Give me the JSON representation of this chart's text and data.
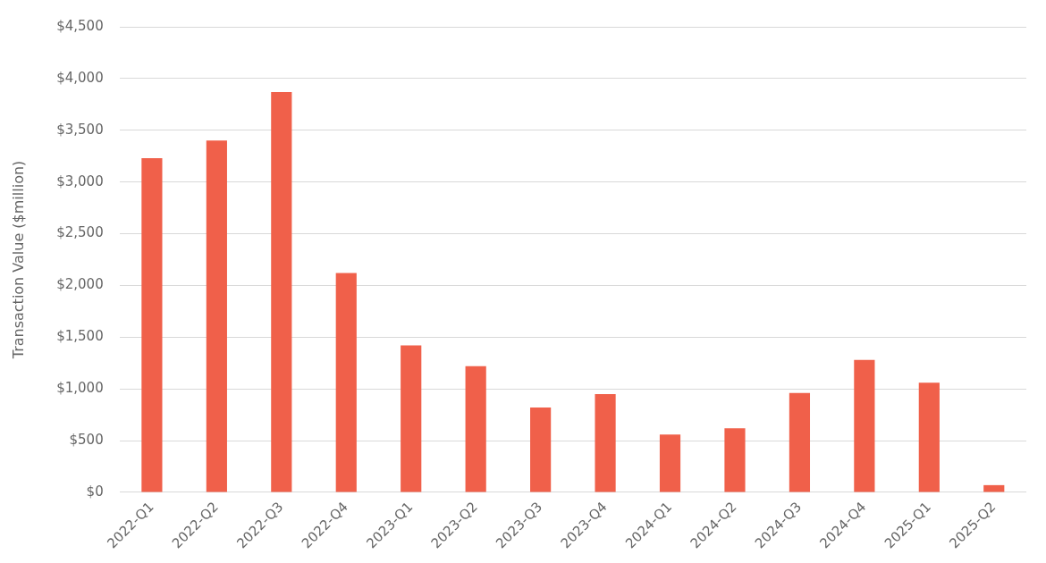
{
  "chart_data": {
    "type": "bar",
    "ylabel": "Transaction Value ($million)",
    "categories": [
      "2022-Q1",
      "2022-Q2",
      "2022-Q3",
      "2022-Q4",
      "2023-Q1",
      "2023-Q2",
      "2023-Q3",
      "2023-Q4",
      "2024-Q1",
      "2024-Q2",
      "2024-Q3",
      "2024-Q4",
      "2025-Q1",
      "2025-Q2"
    ],
    "values": [
      3230,
      3400,
      3870,
      2120,
      1420,
      1220,
      820,
      950,
      560,
      620,
      960,
      1280,
      1060,
      70
    ],
    "color": "#f0604a",
    "ylim": [
      0,
      4500
    ],
    "yticks": [
      {
        "value": 0,
        "label": "$0"
      },
      {
        "value": 500,
        "label": "$500"
      },
      {
        "value": 1000,
        "label": "$1,000"
      },
      {
        "value": 1500,
        "label": "$1,500"
      },
      {
        "value": 2000,
        "label": "$2,000"
      },
      {
        "value": 2500,
        "label": "$2,500"
      },
      {
        "value": 3000,
        "label": "$3,000"
      },
      {
        "value": 3500,
        "label": "$3,500"
      },
      {
        "value": 4000,
        "label": "$4,000"
      },
      {
        "value": 4500,
        "label": "$4,500"
      }
    ],
    "grid": "y",
    "legend": false
  }
}
